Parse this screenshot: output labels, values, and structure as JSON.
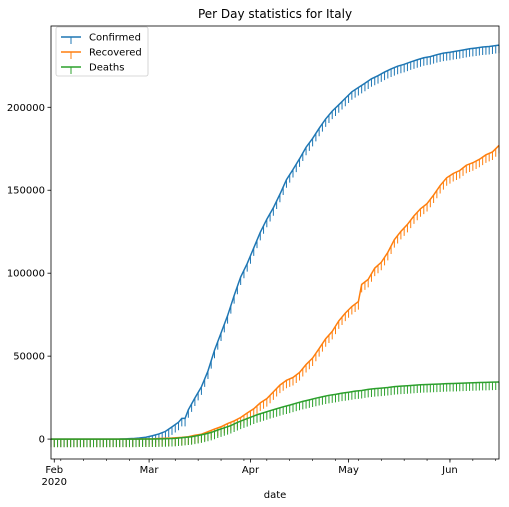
{
  "chart_data": {
    "type": "line",
    "title": "Per Day statistics for Italy",
    "xlabel": "date",
    "ylabel": "",
    "x_start": "2020-01-31",
    "x_end": "2020-06-16",
    "xlim": [
      "2020-01-31",
      "2020-06-16"
    ],
    "ylim": [
      -12000,
      249000
    ],
    "x_ticks": [
      {
        "date": "2020-02-01",
        "label": "Feb",
        "sublabel": "2020"
      },
      {
        "date": "2020-03-01",
        "label": "Mar",
        "sublabel": ""
      },
      {
        "date": "2020-04-01",
        "label": "Apr",
        "sublabel": ""
      },
      {
        "date": "2020-05-01",
        "label": "May",
        "sublabel": ""
      },
      {
        "date": "2020-06-01",
        "label": "Jun",
        "sublabel": ""
      }
    ],
    "y_ticks": [
      {
        "value": 0,
        "label": "0"
      },
      {
        "value": 50000,
        "label": "50000"
      },
      {
        "value": 100000,
        "label": "100000"
      },
      {
        "value": 150000,
        "label": "150000"
      },
      {
        "value": 200000,
        "label": "200000"
      }
    ],
    "grid": false,
    "legend": "top-left",
    "marker": "tickdown",
    "series": [
      {
        "name": "Confirmed",
        "color": "#1f77b4",
        "points": [
          [
            "2020-01-31",
            0
          ],
          [
            "2020-02-21",
            20
          ],
          [
            "2020-02-23",
            150
          ],
          [
            "2020-02-25",
            320
          ],
          [
            "2020-02-27",
            650
          ],
          [
            "2020-02-29",
            1130
          ],
          [
            "2020-03-02",
            2040
          ],
          [
            "2020-03-04",
            3090
          ],
          [
            "2020-03-06",
            4640
          ],
          [
            "2020-03-08",
            7380
          ],
          [
            "2020-03-10",
            10150
          ],
          [
            "2020-03-11",
            12460
          ],
          [
            "2020-03-12",
            12460
          ],
          [
            "2020-03-13",
            17660
          ],
          [
            "2020-03-15",
            24750
          ],
          [
            "2020-03-17",
            31500
          ],
          [
            "2020-03-19",
            41030
          ],
          [
            "2020-03-21",
            53580
          ],
          [
            "2020-03-23",
            63930
          ],
          [
            "2020-03-25",
            74390
          ],
          [
            "2020-03-27",
            86500
          ],
          [
            "2020-03-29",
            97690
          ],
          [
            "2020-03-31",
            105790
          ],
          [
            "2020-04-02",
            115240
          ],
          [
            "2020-04-04",
            124630
          ],
          [
            "2020-04-06",
            132550
          ],
          [
            "2020-04-08",
            139420
          ],
          [
            "2020-04-10",
            147580
          ],
          [
            "2020-04-12",
            156360
          ],
          [
            "2020-04-14",
            162490
          ],
          [
            "2020-04-16",
            168940
          ],
          [
            "2020-04-18",
            175920
          ],
          [
            "2020-04-20",
            181230
          ],
          [
            "2020-04-22",
            187330
          ],
          [
            "2020-04-24",
            192990
          ],
          [
            "2020-04-26",
            197680
          ],
          [
            "2020-04-28",
            201500
          ],
          [
            "2020-04-30",
            205460
          ],
          [
            "2020-05-02",
            209330
          ],
          [
            "2020-05-04",
            211940
          ],
          [
            "2020-05-06",
            214460
          ],
          [
            "2020-05-08",
            217190
          ],
          [
            "2020-05-10",
            219070
          ],
          [
            "2020-05-12",
            221220
          ],
          [
            "2020-05-14",
            223100
          ],
          [
            "2020-05-16",
            224760
          ],
          [
            "2020-05-18",
            225890
          ],
          [
            "2020-05-20",
            227360
          ],
          [
            "2020-05-22",
            228660
          ],
          [
            "2020-05-24",
            229860
          ],
          [
            "2020-05-26",
            230550
          ],
          [
            "2020-05-28",
            231720
          ],
          [
            "2020-05-30",
            232660
          ],
          [
            "2020-06-01",
            233200
          ],
          [
            "2020-06-03",
            233840
          ],
          [
            "2020-06-05",
            234530
          ],
          [
            "2020-06-07",
            235280
          ],
          [
            "2020-06-09",
            235760
          ],
          [
            "2020-06-11",
            236310
          ],
          [
            "2020-06-13",
            236650
          ],
          [
            "2020-06-16",
            237500
          ]
        ]
      },
      {
        "name": "Recovered",
        "color": "#ff7f0e",
        "points": [
          [
            "2020-01-31",
            0
          ],
          [
            "2020-02-24",
            1
          ],
          [
            "2020-02-28",
            46
          ],
          [
            "2020-03-02",
            160
          ],
          [
            "2020-03-05",
            414
          ],
          [
            "2020-03-08",
            622
          ],
          [
            "2020-03-11",
            1045
          ],
          [
            "2020-03-13",
            1439
          ],
          [
            "2020-03-15",
            2335
          ],
          [
            "2020-03-17",
            2941
          ],
          [
            "2020-03-19",
            4440
          ],
          [
            "2020-03-21",
            6072
          ],
          [
            "2020-03-23",
            7432
          ],
          [
            "2020-03-25",
            9362
          ],
          [
            "2020-03-27",
            10950
          ],
          [
            "2020-03-29",
            13030
          ],
          [
            "2020-03-31",
            15729
          ],
          [
            "2020-04-02",
            18278
          ],
          [
            "2020-04-04",
            21815
          ],
          [
            "2020-04-06",
            24392
          ],
          [
            "2020-04-08",
            28470
          ],
          [
            "2020-04-10",
            32534
          ],
          [
            "2020-04-12",
            35435
          ],
          [
            "2020-04-14",
            37130
          ],
          [
            "2020-04-16",
            40164
          ],
          [
            "2020-04-18",
            44927
          ],
          [
            "2020-04-20",
            48877
          ],
          [
            "2020-04-22",
            54543
          ],
          [
            "2020-04-24",
            60498
          ],
          [
            "2020-04-26",
            64928
          ],
          [
            "2020-04-28",
            71252
          ],
          [
            "2020-04-30",
            75945
          ],
          [
            "2020-05-02",
            79914
          ],
          [
            "2020-05-04",
            82879
          ],
          [
            "2020-05-05",
            93245
          ],
          [
            "2020-05-07",
            96276
          ],
          [
            "2020-05-09",
            103031
          ],
          [
            "2020-05-11",
            106587
          ],
          [
            "2020-05-13",
            112541
          ],
          [
            "2020-05-15",
            120205
          ],
          [
            "2020-05-17",
            125176
          ],
          [
            "2020-05-19",
            129401
          ],
          [
            "2020-05-21",
            134560
          ],
          [
            "2020-05-23",
            138840
          ],
          [
            "2020-05-25",
            141981
          ],
          [
            "2020-05-27",
            147101
          ],
          [
            "2020-05-29",
            152844
          ],
          [
            "2020-05-31",
            157507
          ],
          [
            "2020-06-02",
            160092
          ],
          [
            "2020-06-04",
            161895
          ],
          [
            "2020-06-06",
            165078
          ],
          [
            "2020-06-08",
            166584
          ],
          [
            "2020-06-10",
            168646
          ],
          [
            "2020-06-12",
            171338
          ],
          [
            "2020-06-14",
            173085
          ],
          [
            "2020-06-16",
            177010
          ]
        ]
      },
      {
        "name": "Deaths",
        "color": "#2ca02c",
        "points": [
          [
            "2020-01-31",
            0
          ],
          [
            "2020-02-22",
            2
          ],
          [
            "2020-02-26",
            12
          ],
          [
            "2020-02-29",
            29
          ],
          [
            "2020-03-03",
            79
          ],
          [
            "2020-03-06",
            197
          ],
          [
            "2020-03-09",
            463
          ],
          [
            "2020-03-12",
            1016
          ],
          [
            "2020-03-14",
            1441
          ],
          [
            "2020-03-16",
            2158
          ],
          [
            "2020-03-18",
            2978
          ],
          [
            "2020-03-20",
            4032
          ],
          [
            "2020-03-22",
            5476
          ],
          [
            "2020-03-24",
            6820
          ],
          [
            "2020-03-26",
            8165
          ],
          [
            "2020-03-28",
            10023
          ],
          [
            "2020-03-30",
            11591
          ],
          [
            "2020-04-01",
            13155
          ],
          [
            "2020-04-03",
            14681
          ],
          [
            "2020-04-05",
            15887
          ],
          [
            "2020-04-07",
            17127
          ],
          [
            "2020-04-09",
            18279
          ],
          [
            "2020-04-11",
            19468
          ],
          [
            "2020-04-13",
            20465
          ],
          [
            "2020-04-15",
            21645
          ],
          [
            "2020-04-17",
            22745
          ],
          [
            "2020-04-19",
            23660
          ],
          [
            "2020-04-21",
            24648
          ],
          [
            "2020-04-23",
            25549
          ],
          [
            "2020-04-25",
            26384
          ],
          [
            "2020-04-27",
            26977
          ],
          [
            "2020-04-29",
            27682
          ],
          [
            "2020-05-01",
            28236
          ],
          [
            "2020-05-03",
            28884
          ],
          [
            "2020-05-05",
            29315
          ],
          [
            "2020-05-07",
            29958
          ],
          [
            "2020-05-09",
            30395
          ],
          [
            "2020-05-11",
            30739
          ],
          [
            "2020-05-13",
            31106
          ],
          [
            "2020-05-15",
            31610
          ],
          [
            "2020-05-17",
            31908
          ],
          [
            "2020-05-19",
            32169
          ],
          [
            "2020-05-21",
            32486
          ],
          [
            "2020-05-23",
            32735
          ],
          [
            "2020-05-25",
            32877
          ],
          [
            "2020-05-27",
            33072
          ],
          [
            "2020-05-29",
            33229
          ],
          [
            "2020-05-31",
            33415
          ],
          [
            "2020-06-02",
            33530
          ],
          [
            "2020-06-04",
            33689
          ],
          [
            "2020-06-06",
            33846
          ],
          [
            "2020-06-08",
            33964
          ],
          [
            "2020-06-10",
            34114
          ],
          [
            "2020-06-12",
            34223
          ],
          [
            "2020-06-14",
            34345
          ],
          [
            "2020-06-16",
            34405
          ]
        ]
      }
    ]
  }
}
